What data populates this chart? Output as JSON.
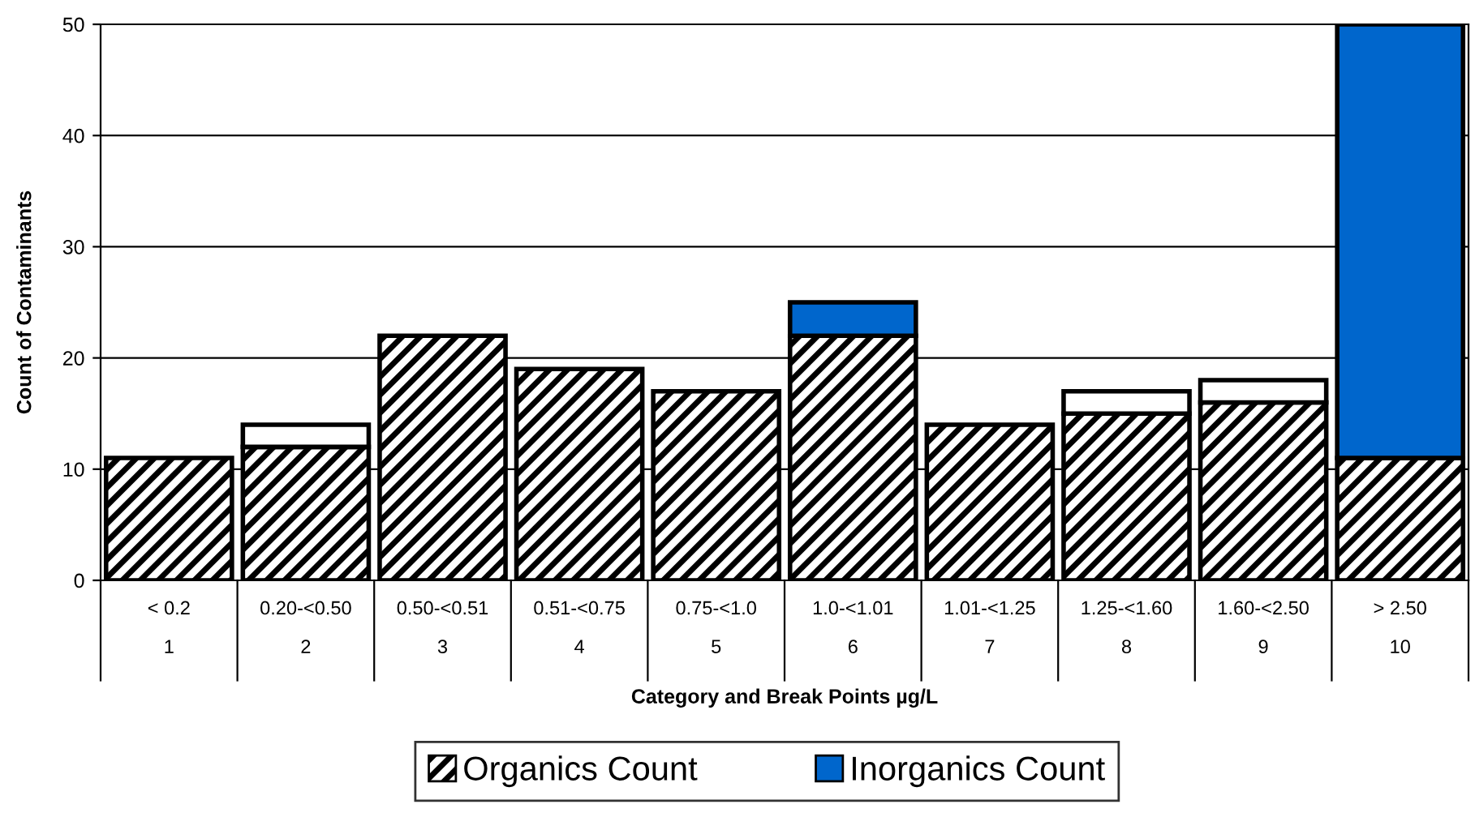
{
  "chart_data": {
    "type": "bar",
    "stacked": true,
    "xlabel": "Category and Break Points µg/L",
    "ylabel": "Count of Contaminants",
    "categories": [
      "< 0.2\n1",
      "0.20-<0.50\n2",
      "0.50-<0.51\n3",
      "0.51-<0.75\n4",
      "0.75-<1.0\n5",
      "1.0-<1.01\n6",
      "1.01-<1.25\n7",
      "1.25-<1.60\n8",
      "1.60-<2.50\n9",
      "> 2.50\n10"
    ],
    "series": [
      {
        "name": "Organics Count",
        "color": "#000000",
        "values": [
          11,
          12,
          22,
          19,
          17,
          22,
          14,
          15,
          16,
          11
        ]
      },
      {
        "name": "Inorganics Count",
        "color": "#0066cc",
        "values": [
          0,
          0,
          0,
          0,
          0,
          3,
          0,
          0,
          0,
          39
        ]
      },
      {
        "color": "#ffffff",
        "values": [
          0,
          2,
          0,
          0,
          0,
          0,
          0,
          2,
          2,
          0
        ]
      }
    ],
    "ylim": [
      0,
      50
    ],
    "yticks": [
      0,
      10,
      20,
      30,
      40,
      50
    ],
    "grid": "y",
    "legend": "bottom"
  }
}
